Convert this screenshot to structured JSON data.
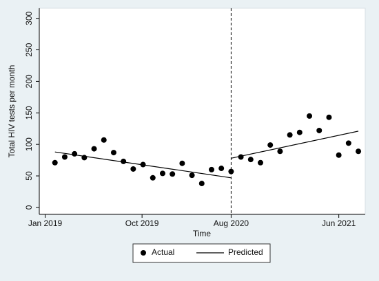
{
  "chart_data": {
    "type": "scatter",
    "y_label": "Total HIV tests per month",
    "x_label": "Time",
    "xlim": [
      -0.6,
      32.7
    ],
    "xticks": [
      {
        "value": 0,
        "label": "Jan 2019"
      },
      {
        "value": 9.9,
        "label": "Oct 2019"
      },
      {
        "value": 19,
        "label": "Aug 2020"
      },
      {
        "value": 30,
        "label": "Jun 2021"
      }
    ],
    "ylim": [
      -11,
      316
    ],
    "yticks": [
      0,
      50,
      100,
      150,
      200,
      250,
      300
    ],
    "xline": 19,
    "series": [
      {
        "name": "Actual",
        "color": "#000000",
        "kind": "points",
        "x": [
          1,
          2,
          3,
          4,
          5,
          6,
          7,
          8,
          9,
          10,
          11,
          12,
          13,
          14,
          15,
          16,
          17,
          18,
          19,
          20,
          21,
          22,
          23,
          24,
          25,
          26,
          27,
          28,
          29,
          30,
          31,
          32
        ],
        "values": [
          71,
          80,
          85,
          79,
          93,
          107,
          87,
          73,
          61,
          68,
          47,
          54,
          53,
          70,
          51,
          38,
          60,
          62,
          57,
          80,
          76,
          71,
          99,
          89,
          115,
          119,
          145,
          122,
          143,
          83,
          102,
          89
        ]
      },
      {
        "name": "Predicted",
        "color": "#000000",
        "kind": "line",
        "x": [
          1,
          19,
          null,
          19,
          32
        ],
        "values": [
          88,
          47,
          null,
          78,
          121
        ]
      }
    ],
    "legend": "bottom"
  }
}
